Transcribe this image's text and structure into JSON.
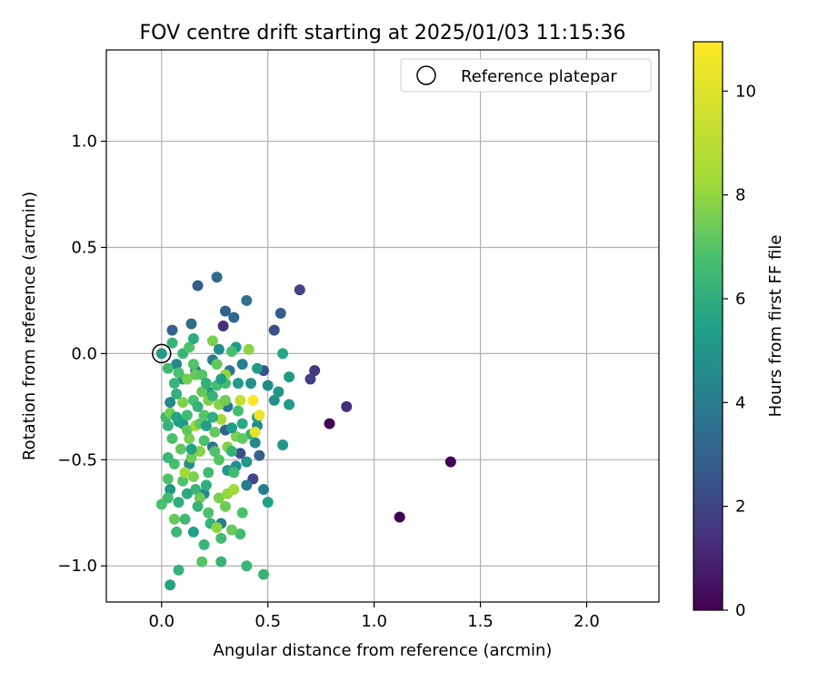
{
  "chart_data": {
    "type": "scatter",
    "title": "FOV centre drift starting at 2025/01/03 11:15:36",
    "xlabel": "Angular distance from reference (arcmin)",
    "ylabel": "Rotation from reference (arcmin)",
    "xlim": [
      -0.26,
      2.34
    ],
    "ylim": [
      -1.17,
      1.43
    ],
    "xticks": [
      0.0,
      0.5,
      1.0,
      1.5,
      2.0
    ],
    "xtick_labels": [
      "0.0",
      "0.5",
      "1.0",
      "1.5",
      "2.0"
    ],
    "yticks": [
      -1.0,
      -0.5,
      0.0,
      0.5,
      1.0
    ],
    "ytick_labels": [
      "−1.0",
      "−0.5",
      "0.0",
      "0.5",
      "1.0"
    ],
    "grid": true,
    "colormap": "viridis",
    "colorbar": {
      "label": "Hours from first FF file",
      "range": [
        0,
        10.95
      ],
      "ticks": [
        0,
        2,
        4,
        6,
        8,
        10
      ],
      "tick_labels": [
        "0",
        "2",
        "4",
        "6",
        "8",
        "10"
      ]
    },
    "legend": {
      "position": "top-right",
      "entries": [
        "Reference platepar"
      ]
    },
    "reference_point": {
      "x": 0.0,
      "y": 0.0
    },
    "points": [
      [
        0.0,
        0.0,
        5.2
      ],
      [
        1.36,
        -0.51,
        0.0
      ],
      [
        1.12,
        -0.77,
        0.0
      ],
      [
        0.79,
        -0.33,
        0.1
      ],
      [
        0.87,
        -0.25,
        1.2
      ],
      [
        0.72,
        -0.08,
        1.5
      ],
      [
        0.7,
        -0.12,
        1.8
      ],
      [
        0.65,
        0.3,
        2.0
      ],
      [
        0.53,
        0.11,
        2.3
      ],
      [
        0.56,
        0.19,
        2.8
      ],
      [
        0.29,
        0.13,
        1.3
      ],
      [
        0.3,
        0.2,
        2.9
      ],
      [
        0.34,
        0.17,
        3.2
      ],
      [
        0.26,
        0.36,
        3.2
      ],
      [
        0.17,
        0.32,
        2.7
      ],
      [
        0.4,
        0.25,
        3.6
      ],
      [
        0.05,
        0.11,
        2.9
      ],
      [
        0.14,
        0.14,
        3.4
      ],
      [
        0.48,
        -0.08,
        2.4
      ],
      [
        0.43,
        -0.59,
        2.0
      ],
      [
        0.37,
        -0.47,
        2.3
      ],
      [
        0.46,
        -0.48,
        3.0
      ],
      [
        0.48,
        -0.64,
        4.1
      ],
      [
        0.5,
        -0.7,
        5.5
      ],
      [
        0.57,
        -0.43,
        5.0
      ],
      [
        0.6,
        -0.24,
        5.2
      ],
      [
        0.6,
        -0.11,
        5.3
      ],
      [
        0.57,
        0.0,
        5.7
      ],
      [
        0.53,
        -0.22,
        4.8
      ],
      [
        0.45,
        -0.34,
        4.5
      ],
      [
        0.45,
        -0.3,
        5.1
      ],
      [
        0.4,
        -0.62,
        4.0
      ],
      [
        0.4,
        -0.51,
        5.0
      ],
      [
        0.31,
        -0.55,
        5.2
      ],
      [
        0.35,
        -0.53,
        4.8
      ],
      [
        0.24,
        -0.44,
        3.5
      ],
      [
        0.3,
        -0.36,
        3.0
      ],
      [
        0.28,
        -0.8,
        4.0
      ],
      [
        0.2,
        -0.66,
        4.4
      ],
      [
        0.04,
        -0.64,
        5.0
      ],
      [
        0.04,
        -0.23,
        4.5
      ],
      [
        0.1,
        -0.12,
        5.0
      ],
      [
        0.07,
        -0.05,
        4.4
      ],
      [
        0.16,
        -0.08,
        4.2
      ],
      [
        0.24,
        -0.03,
        4.0
      ],
      [
        0.27,
        0.02,
        4.6
      ],
      [
        0.35,
        0.03,
        5.2
      ],
      [
        0.38,
        -0.05,
        4.2
      ],
      [
        0.32,
        -0.08,
        3.8
      ],
      [
        0.42,
        -0.14,
        4.9
      ],
      [
        0.5,
        -0.15,
        4.6
      ],
      [
        0.55,
        -0.18,
        5.1
      ],
      [
        0.44,
        -0.42,
        4.4
      ],
      [
        0.31,
        -0.25,
        3.6
      ],
      [
        0.22,
        -0.18,
        5.0
      ],
      [
        0.1,
        -0.33,
        5.0
      ],
      [
        0.13,
        -0.52,
        4.6
      ],
      [
        0.08,
        -0.7,
        6.0
      ],
      [
        0.11,
        -0.78,
        6.5
      ],
      [
        0.15,
        -0.84,
        5.5
      ],
      [
        0.2,
        -0.9,
        6.3
      ],
      [
        0.23,
        -0.8,
        6.2
      ],
      [
        0.28,
        -0.87,
        6.6
      ],
      [
        0.37,
        -0.85,
        6.6
      ],
      [
        0.38,
        -0.75,
        6.8
      ],
      [
        0.33,
        -0.83,
        7.3
      ],
      [
        0.4,
        -1.0,
        6.3
      ],
      [
        0.48,
        -1.04,
        6.3
      ],
      [
        0.28,
        -0.98,
        6.3
      ],
      [
        0.19,
        -0.98,
        7.0
      ],
      [
        0.04,
        -1.09,
        5.6
      ],
      [
        0.08,
        -1.02,
        6.2
      ],
      [
        0.07,
        -0.84,
        6.4
      ],
      [
        0.06,
        -0.78,
        7.3
      ],
      [
        0.0,
        -0.71,
        6.8
      ],
      [
        0.03,
        -0.68,
        6.6
      ],
      [
        0.03,
        -0.59,
        6.9
      ],
      [
        0.06,
        -0.52,
        6.7
      ],
      [
        0.03,
        -0.49,
        6.4
      ],
      [
        0.09,
        -0.45,
        7.2
      ],
      [
        0.05,
        -0.4,
        6.8
      ],
      [
        0.03,
        -0.34,
        6.2
      ],
      [
        0.02,
        -0.3,
        6.5
      ],
      [
        0.04,
        -0.28,
        7.5
      ],
      [
        0.07,
        -0.19,
        6.1
      ],
      [
        0.06,
        -0.14,
        6.3
      ],
      [
        0.03,
        -0.07,
        6.5
      ],
      [
        0.05,
        0.05,
        6.3
      ],
      [
        0.1,
        0.0,
        6.3
      ],
      [
        0.13,
        0.03,
        6.9
      ],
      [
        0.15,
        0.07,
        5.9
      ],
      [
        0.16,
        -0.1,
        7.3
      ],
      [
        0.19,
        -0.1,
        7.0
      ],
      [
        0.24,
        0.06,
        7.6
      ],
      [
        0.33,
        0.01,
        6.7
      ],
      [
        0.41,
        0.02,
        7.9
      ],
      [
        0.3,
        -0.14,
        6.6
      ],
      [
        0.22,
        -0.22,
        7.6
      ],
      [
        0.27,
        -0.24,
        7.8
      ],
      [
        0.3,
        -0.22,
        7.4
      ],
      [
        0.36,
        -0.27,
        6.7
      ],
      [
        0.38,
        -0.33,
        5.8
      ],
      [
        0.35,
        -0.39,
        7.6
      ],
      [
        0.42,
        -0.38,
        6.2
      ],
      [
        0.38,
        -0.4,
        7.2
      ],
      [
        0.43,
        -0.22,
        10.9
      ],
      [
        0.46,
        -0.29,
        10.5
      ],
      [
        0.44,
        -0.37,
        10.2
      ],
      [
        0.37,
        -0.22,
        9.3
      ],
      [
        0.28,
        -0.31,
        8.3
      ],
      [
        0.25,
        -0.46,
        6.9
      ],
      [
        0.27,
        -0.5,
        7.0
      ],
      [
        0.22,
        -0.56,
        6.5
      ],
      [
        0.21,
        -0.62,
        6.0
      ],
      [
        0.16,
        -0.64,
        6.3
      ],
      [
        0.18,
        -0.68,
        7.4
      ],
      [
        0.27,
        -0.68,
        7.6
      ],
      [
        0.31,
        -0.66,
        8.0
      ],
      [
        0.34,
        -0.64,
        8.2
      ],
      [
        0.15,
        -0.58,
        7.6
      ],
      [
        0.1,
        -0.6,
        6.9
      ],
      [
        0.11,
        -0.56,
        8.2
      ],
      [
        0.14,
        -0.49,
        7.4
      ],
      [
        0.18,
        -0.46,
        7.8
      ],
      [
        0.2,
        -0.41,
        6.8
      ],
      [
        0.13,
        -0.4,
        7.6
      ],
      [
        0.12,
        -0.36,
        7.2
      ],
      [
        0.16,
        -0.34,
        8.3
      ],
      [
        0.18,
        -0.33,
        7.1
      ],
      [
        0.12,
        -0.29,
        6.6
      ],
      [
        0.1,
        -0.23,
        7.7
      ],
      [
        0.15,
        -0.22,
        6.8
      ],
      [
        0.17,
        -0.25,
        6.2
      ],
      [
        0.2,
        -0.29,
        7.0
      ],
      [
        0.24,
        -0.3,
        6.0
      ],
      [
        0.25,
        -0.37,
        7.3
      ],
      [
        0.19,
        -0.18,
        7.3
      ],
      [
        0.21,
        -0.14,
        6.1
      ],
      [
        0.26,
        -0.15,
        6.7
      ],
      [
        0.3,
        -0.1,
        8.0
      ],
      [
        0.12,
        -0.12,
        7.5
      ],
      [
        0.08,
        -0.09,
        6.8
      ],
      [
        0.15,
        -0.05,
        7.0
      ],
      [
        0.26,
        -0.05,
        7.2
      ],
      [
        0.24,
        -0.2,
        6.3
      ],
      [
        0.31,
        -0.44,
        7.7
      ],
      [
        0.33,
        -0.46,
        6.2
      ],
      [
        0.34,
        -0.56,
        6.6
      ],
      [
        0.22,
        -0.75,
        6.9
      ],
      [
        0.26,
        -0.82,
        7.9
      ],
      [
        0.3,
        -0.72,
        7.4
      ],
      [
        0.17,
        -0.72,
        6.2
      ],
      [
        0.12,
        -0.66,
        5.8
      ],
      [
        0.14,
        -0.45,
        5.5
      ],
      [
        0.08,
        -0.32,
        5.4
      ],
      [
        0.21,
        -0.34,
        5.3
      ],
      [
        0.28,
        -0.12,
        5.4
      ],
      [
        0.36,
        -0.14,
        5.2
      ],
      [
        0.45,
        -0.07,
        5.3
      ],
      [
        0.33,
        -0.35,
        5.4
      ],
      [
        0.07,
        -0.3,
        5.6
      ]
    ]
  }
}
